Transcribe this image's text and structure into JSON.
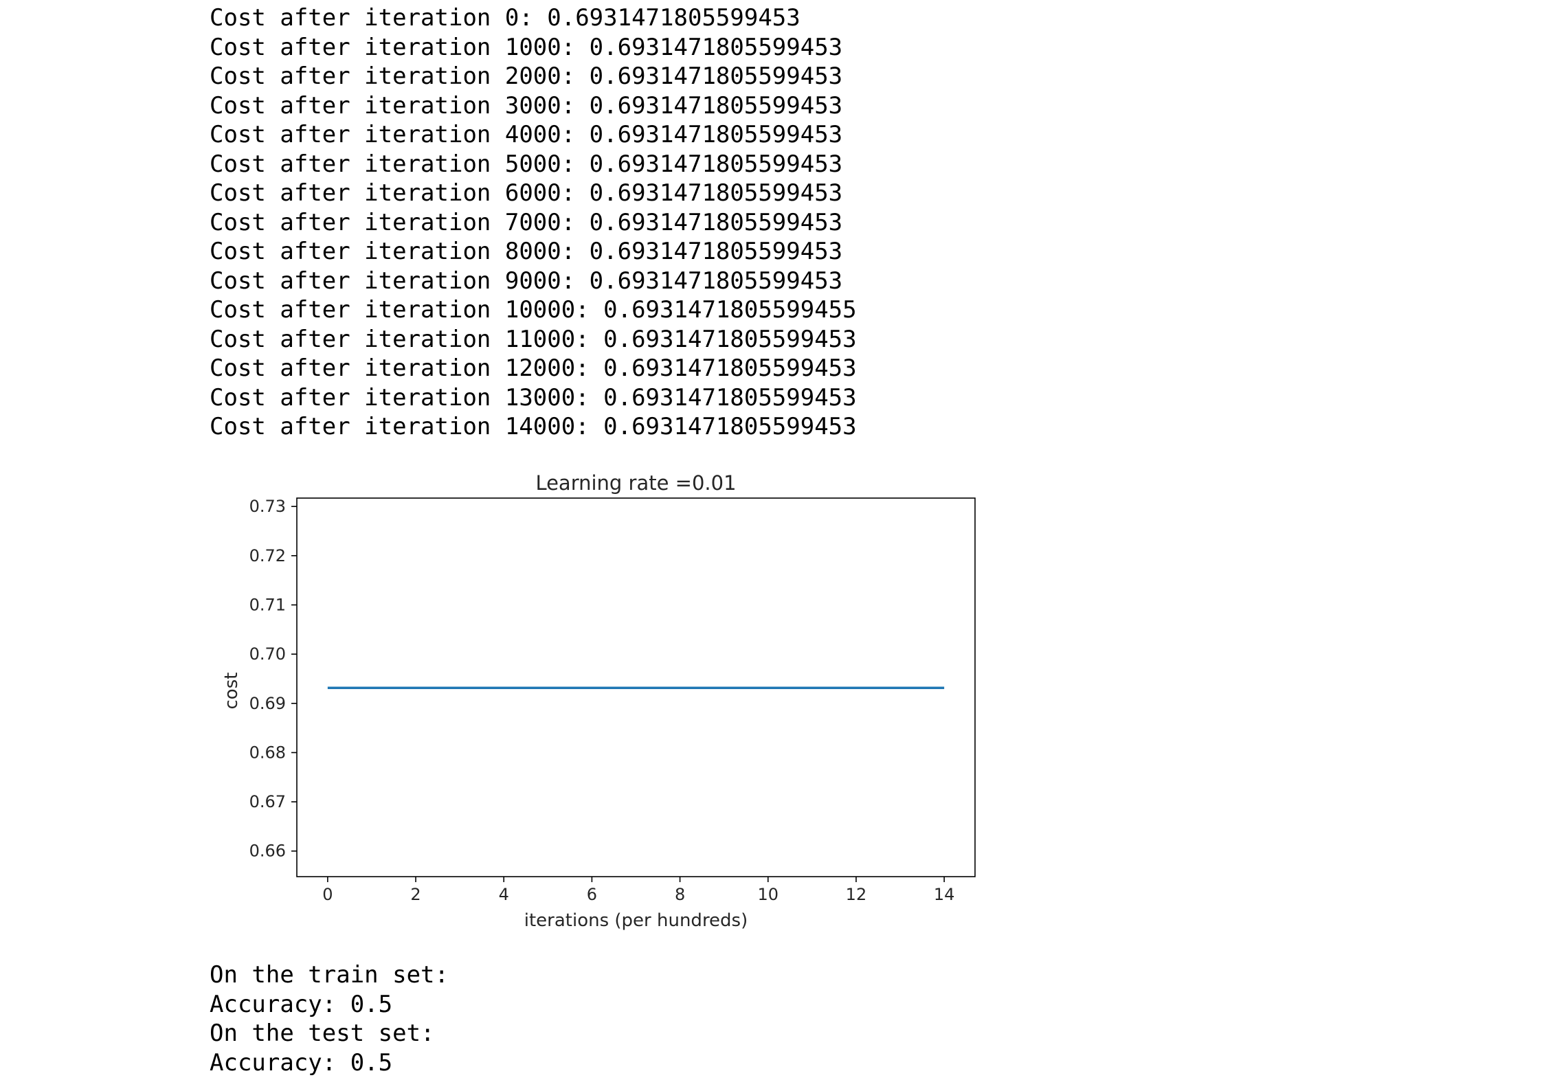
{
  "log_lines": [
    "Cost after iteration 0: 0.6931471805599453",
    "Cost after iteration 1000: 0.6931471805599453",
    "Cost after iteration 2000: 0.6931471805599453",
    "Cost after iteration 3000: 0.6931471805599453",
    "Cost after iteration 4000: 0.6931471805599453",
    "Cost after iteration 5000: 0.6931471805599453",
    "Cost after iteration 6000: 0.6931471805599453",
    "Cost after iteration 7000: 0.6931471805599453",
    "Cost after iteration 8000: 0.6931471805599453",
    "Cost after iteration 9000: 0.6931471805599453",
    "Cost after iteration 10000: 0.6931471805599455",
    "Cost after iteration 11000: 0.6931471805599453",
    "Cost after iteration 12000: 0.6931471805599453",
    "Cost after iteration 13000: 0.6931471805599453",
    "Cost after iteration 14000: 0.6931471805599453"
  ],
  "result_lines": [
    "On the train set:",
    "Accuracy: 0.5",
    "On the test set:",
    "Accuracy: 0.5"
  ],
  "chart_data": {
    "type": "line",
    "title": "Learning rate =0.01",
    "xlabel": "iterations (per hundreds)",
    "ylabel": "cost",
    "xlim": [
      -0.7,
      14.7
    ],
    "ylim": [
      0.6548,
      0.7317
    ],
    "xticks": [
      0,
      2,
      4,
      6,
      8,
      10,
      12,
      14
    ],
    "xtick_labels": [
      "0",
      "2",
      "4",
      "6",
      "8",
      "10",
      "12",
      "14"
    ],
    "yticks": [
      0.66,
      0.67,
      0.68,
      0.69,
      0.7,
      0.71,
      0.72,
      0.73
    ],
    "ytick_labels": [
      "0.66",
      "0.67",
      "0.68",
      "0.69",
      "0.70",
      "0.71",
      "0.72",
      "0.73"
    ],
    "grid": false,
    "series": [
      {
        "color": "#1f77b4",
        "x": [
          0,
          1,
          2,
          3,
          4,
          5,
          6,
          7,
          8,
          9,
          10,
          11,
          12,
          13,
          14
        ],
        "y": [
          0.6931471805599453,
          0.6931471805599453,
          0.6931471805599453,
          0.6931471805599453,
          0.6931471805599453,
          0.6931471805599453,
          0.6931471805599453,
          0.6931471805599453,
          0.6931471805599453,
          0.6931471805599453,
          0.6931471805599455,
          0.6931471805599453,
          0.6931471805599453,
          0.6931471805599453,
          0.6931471805599453
        ]
      }
    ]
  }
}
